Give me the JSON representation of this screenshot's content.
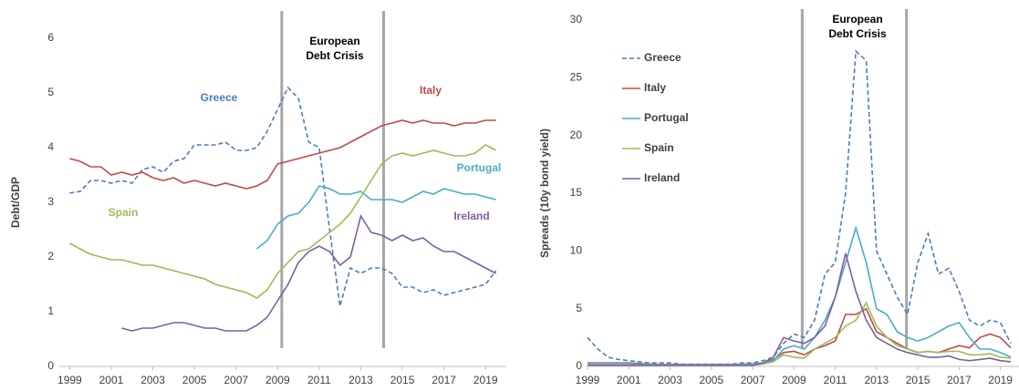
{
  "chart_data": [
    {
      "type": "line",
      "ylabel": "Debt/GDP",
      "annotation": [
        "European",
        "Debt Crisis"
      ],
      "event_lines": [
        2009.2,
        2014.1
      ],
      "labels": "inline",
      "x": [
        1999,
        1999.5,
        2000,
        2000.5,
        2001,
        2001.5,
        2002,
        2002.5,
        2003,
        2003.5,
        2004,
        2004.5,
        2005,
        2005.5,
        2006,
        2006.5,
        2007,
        2007.5,
        2008,
        2008.5,
        2009,
        2009.5,
        2010,
        2010.5,
        2011,
        2011.5,
        2012,
        2012.5,
        2013,
        2013.5,
        2014,
        2014.5,
        2015,
        2015.5,
        2016,
        2016.5,
        2017,
        2017.5,
        2018,
        2018.5,
        2019,
        2019.5
      ],
      "xlim": [
        1998.5,
        2020
      ],
      "xticks": [
        1999,
        2001,
        2003,
        2005,
        2007,
        2009,
        2011,
        2013,
        2015,
        2017,
        2019
      ],
      "ylim": [
        0,
        6
      ],
      "yticks": [
        0,
        1,
        2,
        3,
        4,
        5,
        6
      ],
      "series": [
        {
          "name": "Greece",
          "color": "#4a7ebb",
          "dashed": true,
          "values": [
            3.17,
            3.2,
            3.4,
            3.4,
            3.35,
            3.4,
            3.35,
            3.6,
            3.65,
            3.55,
            3.75,
            3.8,
            4.05,
            4.05,
            4.05,
            4.1,
            3.95,
            3.95,
            4.0,
            4.3,
            4.7,
            5.1,
            4.9,
            4.1,
            4.0,
            2.5,
            1.1,
            1.8,
            1.7,
            1.8,
            1.8,
            1.7,
            1.45,
            1.45,
            1.35,
            1.4,
            1.3,
            1.35,
            1.4,
            1.45,
            1.5,
            1.75
          ]
        },
        {
          "name": "Italy",
          "color": "#be4b48",
          "values": [
            3.8,
            3.75,
            3.65,
            3.65,
            3.5,
            3.55,
            3.5,
            3.55,
            3.45,
            3.4,
            3.45,
            3.35,
            3.4,
            3.35,
            3.3,
            3.35,
            3.3,
            3.25,
            3.3,
            3.4,
            3.7,
            3.75,
            3.8,
            3.85,
            3.9,
            3.95,
            4.0,
            4.1,
            4.2,
            4.3,
            4.4,
            4.45,
            4.5,
            4.45,
            4.5,
            4.45,
            4.45,
            4.4,
            4.45,
            4.45,
            4.5,
            4.5
          ]
        },
        {
          "name": "Portugal",
          "color": "#4bacc6",
          "values": [
            null,
            null,
            null,
            null,
            null,
            null,
            null,
            null,
            null,
            null,
            null,
            null,
            null,
            null,
            null,
            null,
            null,
            null,
            2.15,
            2.3,
            2.6,
            2.75,
            2.8,
            3.0,
            3.3,
            3.25,
            3.15,
            3.15,
            3.2,
            3.05,
            3.05,
            3.05,
            3.0,
            3.1,
            3.2,
            3.15,
            3.25,
            3.2,
            3.15,
            3.15,
            3.1,
            3.05
          ]
        },
        {
          "name": "Spain",
          "color": "#9bbb59",
          "values": [
            2.25,
            2.15,
            2.05,
            2.0,
            1.95,
            1.95,
            1.9,
            1.85,
            1.85,
            1.8,
            1.75,
            1.7,
            1.65,
            1.6,
            1.5,
            1.45,
            1.4,
            1.35,
            1.25,
            1.4,
            1.7,
            1.9,
            2.1,
            2.15,
            2.3,
            2.45,
            2.6,
            2.8,
            3.1,
            3.4,
            3.7,
            3.85,
            3.9,
            3.85,
            3.9,
            3.95,
            3.9,
            3.85,
            3.85,
            3.9,
            4.05,
            3.95
          ]
        },
        {
          "name": "Ireland",
          "color": "#7f5fa0",
          "values": [
            null,
            null,
            null,
            null,
            null,
            0.7,
            0.65,
            0.7,
            0.7,
            0.75,
            0.8,
            0.8,
            0.75,
            0.7,
            0.7,
            0.65,
            0.65,
            0.65,
            0.75,
            0.9,
            1.2,
            1.5,
            1.9,
            2.1,
            2.2,
            2.1,
            1.85,
            2.0,
            2.75,
            2.45,
            2.4,
            2.3,
            2.4,
            2.3,
            2.35,
            2.2,
            2.1,
            2.1,
            2.0,
            1.9,
            1.8,
            1.7
          ]
        }
      ]
    },
    {
      "type": "line",
      "ylabel": "Spreads (10y bond yield)",
      "annotation": [
        "European",
        "Debt Crisis"
      ],
      "event_lines": [
        2009.4,
        2014.45
      ],
      "legend": "upper left",
      "x": [
        1999,
        1999.5,
        2000,
        2000.5,
        2001,
        2001.5,
        2002,
        2002.5,
        2003,
        2003.5,
        2004,
        2004.5,
        2005,
        2005.5,
        2006,
        2006.5,
        2007,
        2007.5,
        2008,
        2008.5,
        2009,
        2009.5,
        2010,
        2010.5,
        2011,
        2011.5,
        2012,
        2012.5,
        2013,
        2013.5,
        2014,
        2014.5,
        2015,
        2015.5,
        2016,
        2016.5,
        2017,
        2017.5,
        2018,
        2018.5,
        2019,
        2019.5
      ],
      "xlim": [
        1999,
        2019.9
      ],
      "xticks": [
        1999,
        2001,
        2003,
        2005,
        2007,
        2009,
        2011,
        2013,
        2015,
        2017,
        2019
      ],
      "ylim": [
        0,
        30
      ],
      "yticks": [
        0,
        5,
        10,
        15,
        20,
        25,
        30
      ],
      "series": [
        {
          "name": "Greece",
          "color": "#4a7ebb",
          "dashed": true,
          "values": [
            2.5,
            1.5,
            0.8,
            0.6,
            0.5,
            0.4,
            0.3,
            0.3,
            0.3,
            0.2,
            0.2,
            0.2,
            0.2,
            0.2,
            0.2,
            0.3,
            0.3,
            0.5,
            0.8,
            2.0,
            2.8,
            2.5,
            4.0,
            8.0,
            9.0,
            15.0,
            27.3,
            26.5,
            10.0,
            8.0,
            6.0,
            4.5,
            9.0,
            11.5,
            8.0,
            8.5,
            6.5,
            4.0,
            3.5,
            4.0,
            3.8,
            2.0
          ]
        },
        {
          "name": "Italy",
          "color": "#be4b48",
          "values": [
            0.3,
            0.3,
            0.3,
            0.3,
            0.3,
            0.25,
            0.2,
            0.15,
            0.15,
            0.15,
            0.15,
            0.15,
            0.15,
            0.15,
            0.15,
            0.2,
            0.2,
            0.3,
            0.6,
            1.2,
            1.3,
            1.0,
            1.5,
            1.8,
            2.2,
            4.5,
            4.5,
            5.0,
            3.0,
            2.5,
            2.0,
            1.5,
            1.2,
            1.3,
            1.2,
            1.5,
            1.8,
            1.6,
            2.5,
            2.8,
            2.5,
            1.6
          ]
        },
        {
          "name": "Portugal",
          "color": "#4bacc6",
          "values": [
            0.25,
            0.25,
            0.25,
            0.25,
            0.25,
            0.2,
            0.2,
            0.15,
            0.15,
            0.15,
            0.15,
            0.15,
            0.15,
            0.15,
            0.15,
            0.2,
            0.2,
            0.3,
            0.5,
            1.5,
            1.8,
            1.5,
            2.5,
            4.0,
            6.0,
            9.0,
            12.0,
            9.0,
            5.0,
            4.5,
            3.0,
            2.5,
            2.2,
            2.5,
            3.0,
            3.5,
            3.8,
            2.5,
            1.5,
            1.5,
            1.2,
            0.8
          ]
        },
        {
          "name": "Spain",
          "color": "#9bbb59",
          "values": [
            0.1,
            0.1,
            0.1,
            0.1,
            0.1,
            0.1,
            0.1,
            0.1,
            0.1,
            0.1,
            0.1,
            0.1,
            0.1,
            0.1,
            0.1,
            0.1,
            0.1,
            0.2,
            0.4,
            1.0,
            0.8,
            0.7,
            1.5,
            2.0,
            2.5,
            3.5,
            4.0,
            5.5,
            3.5,
            2.5,
            1.8,
            1.5,
            1.2,
            1.3,
            1.2,
            1.3,
            1.3,
            1.0,
            1.0,
            1.1,
            0.8,
            0.7
          ]
        },
        {
          "name": "Ireland",
          "color": "#7f5fa0",
          "values": [
            0.1,
            0.1,
            0.1,
            0.1,
            0.1,
            0.1,
            0.1,
            0.1,
            0.1,
            0.1,
            0.1,
            0.1,
            0.1,
            0.1,
            0.1,
            0.1,
            0.1,
            0.3,
            0.8,
            2.5,
            2.2,
            2.0,
            2.5,
            3.5,
            6.0,
            9.8,
            6.5,
            4.0,
            2.5,
            2.0,
            1.5,
            1.2,
            1.0,
            0.8,
            0.8,
            0.9,
            0.6,
            0.5,
            0.6,
            0.7,
            0.5,
            0.4
          ]
        }
      ]
    }
  ]
}
